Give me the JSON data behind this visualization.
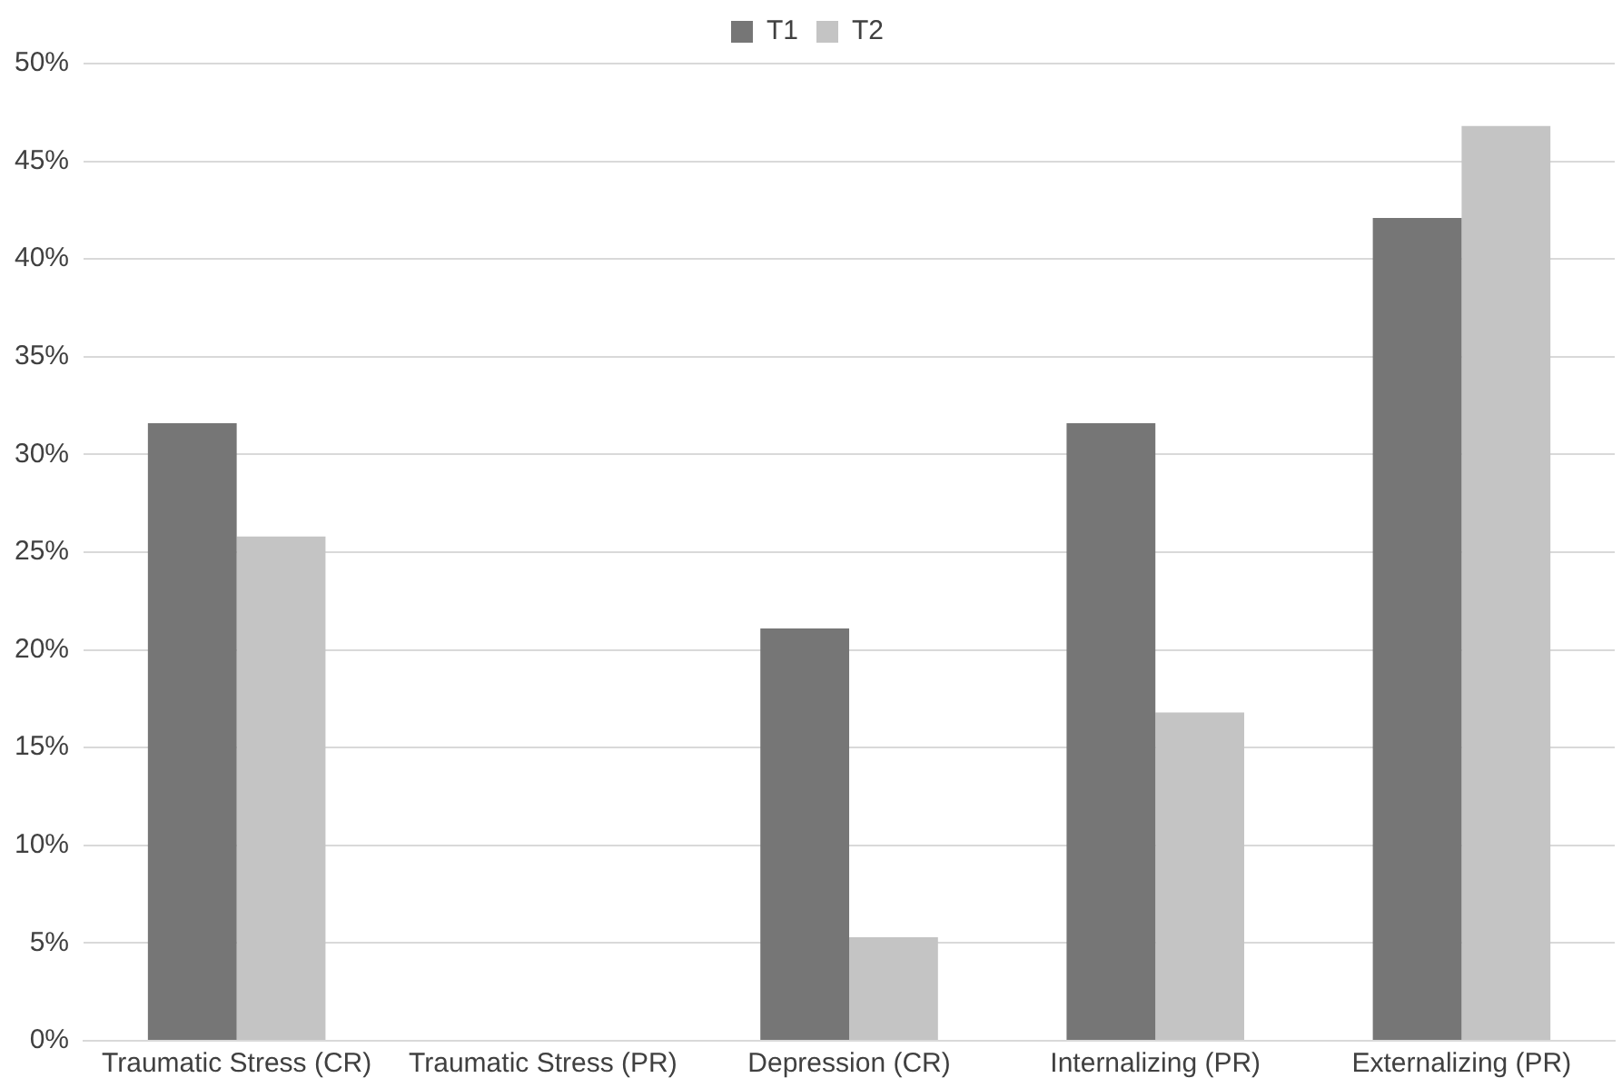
{
  "chart_data": {
    "type": "bar",
    "categories": [
      "Traumatic Stress (CR)",
      "Traumatic Stress (PR)",
      "Depression (CR)",
      "Internalizing (PR)",
      "Externalizing (PR)"
    ],
    "series": [
      {
        "name": "T1",
        "color": "#767676",
        "values": [
          31.6,
          0,
          21.1,
          31.6,
          42.1
        ]
      },
      {
        "name": "T2",
        "color": "#c4c4c4",
        "values": [
          25.8,
          0,
          5.3,
          16.8,
          46.8
        ]
      }
    ],
    "ylim": [
      0,
      50
    ],
    "yticks": [
      {
        "value": 0,
        "label": "0%"
      },
      {
        "value": 5,
        "label": "5%"
      },
      {
        "value": 10,
        "label": "10%"
      },
      {
        "value": 15,
        "label": "15%"
      },
      {
        "value": 20,
        "label": "20%"
      },
      {
        "value": 25,
        "label": "25%"
      },
      {
        "value": 30,
        "label": "30%"
      },
      {
        "value": 35,
        "label": "35%"
      },
      {
        "value": 40,
        "label": "40%"
      },
      {
        "value": 45,
        "label": "45%"
      },
      {
        "value": 50,
        "label": "50%"
      }
    ],
    "grid": "y",
    "legend": "top"
  }
}
